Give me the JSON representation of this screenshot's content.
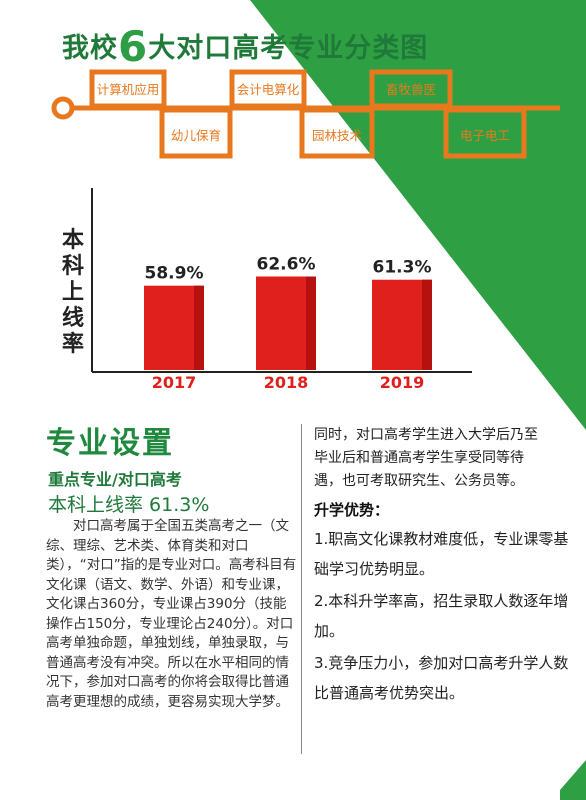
{
  "colors": {
    "green": "#2ea043",
    "orange": "#e8781e",
    "red": "#e0201c",
    "title_green": "#1f7a3a"
  },
  "title": {
    "pre": "我校",
    "num": "6",
    "post": "大对口高考专业分类图"
  },
  "majors": [
    {
      "name": "计算机应用",
      "row": "top"
    },
    {
      "name": "幼儿保育",
      "row": "bottom"
    },
    {
      "name": "会计电算化",
      "row": "top"
    },
    {
      "name": "园林技术",
      "row": "bottom"
    },
    {
      "name": "畜牧兽医",
      "row": "top"
    },
    {
      "name": "电子电工",
      "row": "bottom"
    }
  ],
  "chart_data": {
    "type": "bar",
    "categories": [
      "2017",
      "2018",
      "2019"
    ],
    "values": [
      58.9,
      62.6,
      61.3
    ],
    "data_labels": [
      "58.9%",
      "62.6%",
      "61.3%"
    ],
    "ylabel": "本科上线率",
    "ylim": [
      0,
      100
    ],
    "grid": false
  },
  "section": {
    "title": "专业设置",
    "subtitle": "重点专业/对口高考",
    "rate_line": "本科上线率 61.3%",
    "paragraph": "对口高考属于全国五类高考之一（文综、理综、艺术类、体育类和对口类），“对口”指的是专业对口。高考科目有文化课（语文、数学、外语）和专业课，文化课占360分，专业课占390分（技能操作占150分，专业理论占240分）。对口高考单独命题，单独划线，单独录取，与普通高考没有冲突。所以在水平相同的情况下，参加对口高考的你将会取得比普通高考更理想的成绩，更容易实现大学梦。"
  },
  "right": {
    "para1": "同时，对口高考学生进入大学后乃至毕业后和普通高考学生享受同等待遇，也可考取研究生、公务员等。",
    "header": "升学优势：",
    "items": [
      "1.职高文化课教材难度低，专业课零基础学习优势明显。",
      "2.本科升学率高，招生录取人数逐年增加。",
      "3.竞争压力小，参加对口高考升学人数比普通高考优势突出。"
    ]
  }
}
